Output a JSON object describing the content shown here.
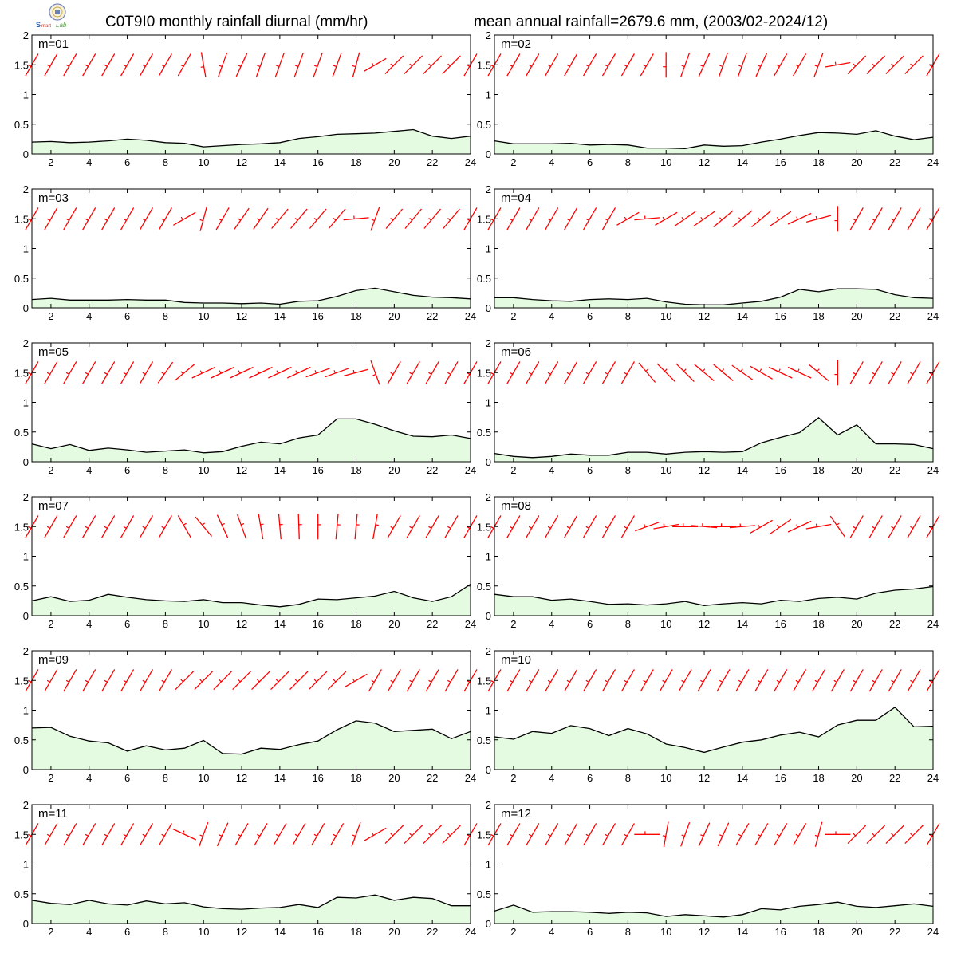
{
  "header": {
    "title_left": "C0T9I0 monthly rainfall diurnal (mm/hr)",
    "title_right": "mean annual rainfall=2679.6 mm, (2003/02-2024/12)",
    "logo_text": "Lab"
  },
  "colors": {
    "rain_fill": "#e5fbe1",
    "rain_line": "#000000",
    "wind": "#ff0000",
    "frame": "#000000"
  },
  "chart_data": [
    {
      "type": "area",
      "label": "m=01",
      "x": [
        1,
        2,
        3,
        4,
        5,
        6,
        7,
        8,
        9,
        10,
        11,
        12,
        13,
        14,
        15,
        16,
        17,
        18,
        19,
        20,
        21,
        22,
        23,
        24
      ],
      "values": [
        0.2,
        0.21,
        0.19,
        0.2,
        0.22,
        0.25,
        0.23,
        0.19,
        0.18,
        0.12,
        0.14,
        0.16,
        0.17,
        0.19,
        0.26,
        0.29,
        0.33,
        0.34,
        0.35,
        0.38,
        0.41,
        0.3,
        0.26,
        0.3
      ],
      "wind_dir": [
        210,
        210,
        210,
        210,
        210,
        210,
        210,
        210,
        210,
        170,
        200,
        205,
        200,
        200,
        200,
        200,
        200,
        195,
        240,
        225,
        225,
        225,
        225,
        210
      ],
      "ylim": [
        0,
        2
      ],
      "xticks": [
        2,
        4,
        6,
        8,
        10,
        12,
        14,
        16,
        18,
        20,
        22,
        24
      ],
      "yticks": [
        "0",
        "0.5",
        "1",
        "1.5",
        "2"
      ]
    },
    {
      "type": "area",
      "label": "m=02",
      "x": [
        1,
        2,
        3,
        4,
        5,
        6,
        7,
        8,
        9,
        10,
        11,
        12,
        13,
        14,
        15,
        16,
        17,
        18,
        19,
        20,
        21,
        22,
        23,
        24
      ],
      "values": [
        0.22,
        0.17,
        0.17,
        0.17,
        0.18,
        0.15,
        0.16,
        0.15,
        0.1,
        0.1,
        0.09,
        0.15,
        0.13,
        0.14,
        0.2,
        0.25,
        0.31,
        0.36,
        0.35,
        0.33,
        0.39,
        0.3,
        0.24,
        0.28
      ],
      "wind_dir": [
        210,
        210,
        210,
        210,
        210,
        210,
        210,
        210,
        210,
        180,
        200,
        205,
        200,
        200,
        205,
        210,
        210,
        200,
        260,
        225,
        225,
        225,
        225,
        210
      ],
      "ylim": [
        0,
        2
      ],
      "xticks": [
        2,
        4,
        6,
        8,
        10,
        12,
        14,
        16,
        18,
        20,
        22,
        24
      ],
      "yticks": [
        "0",
        "0.5",
        "1",
        "1.5",
        "2"
      ]
    },
    {
      "type": "area",
      "label": "m=03",
      "x": [
        1,
        2,
        3,
        4,
        5,
        6,
        7,
        8,
        9,
        10,
        11,
        12,
        13,
        14,
        15,
        16,
        17,
        18,
        19,
        20,
        21,
        22,
        23,
        24
      ],
      "values": [
        0.14,
        0.16,
        0.13,
        0.13,
        0.13,
        0.14,
        0.13,
        0.13,
        0.09,
        0.08,
        0.08,
        0.07,
        0.08,
        0.06,
        0.11,
        0.12,
        0.19,
        0.29,
        0.33,
        0.27,
        0.21,
        0.18,
        0.17,
        0.15
      ],
      "wind_dir": [
        210,
        210,
        210,
        210,
        210,
        210,
        210,
        210,
        240,
        195,
        210,
        215,
        215,
        220,
        220,
        220,
        220,
        265,
        200,
        220,
        220,
        220,
        220,
        210
      ],
      "ylim": [
        0,
        2
      ],
      "xticks": [
        2,
        4,
        6,
        8,
        10,
        12,
        14,
        16,
        18,
        20,
        22,
        24
      ],
      "yticks": [
        "0",
        "0.5",
        "1",
        "1.5",
        "2"
      ]
    },
    {
      "type": "area",
      "label": "m=04",
      "x": [
        1,
        2,
        3,
        4,
        5,
        6,
        7,
        8,
        9,
        10,
        11,
        12,
        13,
        14,
        15,
        16,
        17,
        18,
        19,
        20,
        21,
        22,
        23,
        24
      ],
      "values": [
        0.17,
        0.17,
        0.14,
        0.12,
        0.11,
        0.14,
        0.15,
        0.14,
        0.16,
        0.1,
        0.06,
        0.05,
        0.05,
        0.08,
        0.11,
        0.18,
        0.31,
        0.27,
        0.32,
        0.32,
        0.31,
        0.22,
        0.17,
        0.16
      ],
      "wind_dir": [
        210,
        210,
        210,
        210,
        210,
        210,
        210,
        240,
        265,
        240,
        235,
        235,
        230,
        230,
        230,
        235,
        245,
        255,
        180,
        210,
        210,
        210,
        210,
        210
      ],
      "ylim": [
        0,
        2
      ],
      "xticks": [
        2,
        4,
        6,
        8,
        10,
        12,
        14,
        16,
        18,
        20,
        22,
        24
      ],
      "yticks": [
        "0",
        "0.5",
        "1",
        "1.5",
        "2"
      ]
    },
    {
      "type": "area",
      "label": "m=05",
      "x": [
        1,
        2,
        3,
        4,
        5,
        6,
        7,
        8,
        9,
        10,
        11,
        12,
        13,
        14,
        15,
        16,
        17,
        18,
        19,
        20,
        21,
        22,
        23,
        24
      ],
      "values": [
        0.3,
        0.22,
        0.29,
        0.19,
        0.23,
        0.2,
        0.16,
        0.18,
        0.2,
        0.15,
        0.17,
        0.26,
        0.33,
        0.3,
        0.4,
        0.45,
        0.72,
        0.72,
        0.63,
        0.52,
        0.43,
        0.42,
        0.45,
        0.39
      ],
      "wind_dir": [
        210,
        210,
        210,
        210,
        210,
        210,
        210,
        215,
        230,
        245,
        245,
        245,
        245,
        245,
        245,
        250,
        250,
        255,
        160,
        210,
        210,
        210,
        210,
        210
      ],
      "ylim": [
        0,
        2
      ],
      "xticks": [
        2,
        4,
        6,
        8,
        10,
        12,
        14,
        16,
        18,
        20,
        22,
        24
      ],
      "yticks": [
        "0",
        "0.5",
        "1",
        "1.5",
        "2"
      ]
    },
    {
      "type": "area",
      "label": "m=06",
      "x": [
        1,
        2,
        3,
        4,
        5,
        6,
        7,
        8,
        9,
        10,
        11,
        12,
        13,
        14,
        15,
        16,
        17,
        18,
        19,
        20,
        21,
        22,
        23,
        24
      ],
      "values": [
        0.14,
        0.09,
        0.07,
        0.09,
        0.13,
        0.11,
        0.11,
        0.16,
        0.16,
        0.13,
        0.16,
        0.17,
        0.16,
        0.17,
        0.32,
        0.41,
        0.49,
        0.74,
        0.45,
        0.62,
        0.3,
        0.3,
        0.29,
        0.22
      ],
      "wind_dir": [
        210,
        210,
        210,
        210,
        210,
        210,
        210,
        210,
        320,
        315,
        315,
        310,
        310,
        305,
        300,
        295,
        295,
        310,
        180,
        210,
        210,
        210,
        210,
        210
      ],
      "ylim": [
        0,
        2
      ],
      "xticks": [
        2,
        4,
        6,
        8,
        10,
        12,
        14,
        16,
        18,
        20,
        22,
        24
      ],
      "yticks": [
        "0",
        "0.5",
        "1",
        "1.5",
        "2"
      ]
    },
    {
      "type": "area",
      "label": "m=07",
      "x": [
        1,
        2,
        3,
        4,
        5,
        6,
        7,
        8,
        9,
        10,
        11,
        12,
        13,
        14,
        15,
        16,
        17,
        18,
        19,
        20,
        21,
        22,
        23,
        24
      ],
      "values": [
        0.25,
        0.32,
        0.24,
        0.26,
        0.36,
        0.31,
        0.27,
        0.25,
        0.24,
        0.27,
        0.22,
        0.22,
        0.18,
        0.15,
        0.19,
        0.28,
        0.27,
        0.3,
        0.33,
        0.41,
        0.3,
        0.24,
        0.32,
        0.53
      ],
      "wind_dir": [
        210,
        210,
        210,
        210,
        210,
        210,
        210,
        210,
        330,
        320,
        335,
        340,
        350,
        355,
        358,
        0,
        5,
        5,
        10,
        210,
        210,
        210,
        210,
        210
      ],
      "ylim": [
        0,
        2
      ],
      "xticks": [
        2,
        4,
        6,
        8,
        10,
        12,
        14,
        16,
        18,
        20,
        22,
        24
      ],
      "yticks": [
        "0",
        "0.5",
        "1",
        "1.5",
        "2"
      ]
    },
    {
      "type": "area",
      "label": "m=08",
      "x": [
        1,
        2,
        3,
        4,
        5,
        6,
        7,
        8,
        9,
        10,
        11,
        12,
        13,
        14,
        15,
        16,
        17,
        18,
        19,
        20,
        21,
        22,
        23,
        24
      ],
      "values": [
        0.36,
        0.32,
        0.32,
        0.26,
        0.28,
        0.24,
        0.19,
        0.2,
        0.18,
        0.2,
        0.24,
        0.17,
        0.2,
        0.22,
        0.2,
        0.26,
        0.24,
        0.29,
        0.31,
        0.28,
        0.38,
        0.43,
        0.45,
        0.49
      ],
      "wind_dir": [
        210,
        210,
        210,
        210,
        210,
        210,
        210,
        210,
        250,
        260,
        270,
        275,
        270,
        265,
        240,
        235,
        245,
        260,
        325,
        210,
        210,
        210,
        210,
        210
      ],
      "ylim": [
        0,
        2
      ],
      "xticks": [
        2,
        4,
        6,
        8,
        10,
        12,
        14,
        16,
        18,
        20,
        22,
        24
      ],
      "yticks": [
        "0",
        "0.5",
        "1",
        "1.5",
        "2"
      ]
    },
    {
      "type": "area",
      "label": "m=09",
      "x": [
        1,
        2,
        3,
        4,
        5,
        6,
        7,
        8,
        9,
        10,
        11,
        12,
        13,
        14,
        15,
        16,
        17,
        18,
        19,
        20,
        21,
        22,
        23,
        24
      ],
      "values": [
        0.7,
        0.71,
        0.56,
        0.48,
        0.45,
        0.31,
        0.4,
        0.33,
        0.36,
        0.49,
        0.27,
        0.26,
        0.36,
        0.34,
        0.42,
        0.48,
        0.67,
        0.82,
        0.78,
        0.64,
        0.66,
        0.68,
        0.52,
        0.64
      ],
      "wind_dir": [
        210,
        210,
        210,
        210,
        210,
        210,
        210,
        210,
        225,
        225,
        225,
        225,
        225,
        225,
        225,
        225,
        225,
        240,
        210,
        210,
        210,
        210,
        210,
        210
      ],
      "ylim": [
        0,
        2
      ],
      "xticks": [
        2,
        4,
        6,
        8,
        10,
        12,
        14,
        16,
        18,
        20,
        22,
        24
      ],
      "yticks": [
        "0",
        "0.5",
        "1",
        "1.5",
        "2"
      ]
    },
    {
      "type": "area",
      "label": "m=10",
      "x": [
        1,
        2,
        3,
        4,
        5,
        6,
        7,
        8,
        9,
        10,
        11,
        12,
        13,
        14,
        15,
        16,
        17,
        18,
        19,
        20,
        21,
        22,
        23,
        24
      ],
      "values": [
        0.55,
        0.51,
        0.64,
        0.61,
        0.74,
        0.69,
        0.57,
        0.69,
        0.6,
        0.43,
        0.37,
        0.29,
        0.38,
        0.46,
        0.5,
        0.58,
        0.63,
        0.55,
        0.75,
        0.83,
        0.83,
        1.05,
        0.72,
        0.73
      ],
      "wind_dir": [
        210,
        210,
        210,
        210,
        210,
        210,
        210,
        210,
        210,
        210,
        210,
        210,
        210,
        210,
        210,
        210,
        210,
        210,
        210,
        210,
        210,
        210,
        210,
        210
      ],
      "ylim": [
        0,
        2
      ],
      "xticks": [
        2,
        4,
        6,
        8,
        10,
        12,
        14,
        16,
        18,
        20,
        22,
        24
      ],
      "yticks": [
        "0",
        "0.5",
        "1",
        "1.5",
        "2"
      ]
    },
    {
      "type": "area",
      "label": "m=11",
      "x": [
        1,
        2,
        3,
        4,
        5,
        6,
        7,
        8,
        9,
        10,
        11,
        12,
        13,
        14,
        15,
        16,
        17,
        18,
        19,
        20,
        21,
        22,
        23,
        24
      ],
      "values": [
        0.39,
        0.34,
        0.32,
        0.39,
        0.33,
        0.31,
        0.38,
        0.33,
        0.35,
        0.28,
        0.25,
        0.24,
        0.26,
        0.27,
        0.32,
        0.27,
        0.44,
        0.43,
        0.48,
        0.39,
        0.44,
        0.42,
        0.3,
        0.3
      ],
      "wind_dir": [
        210,
        210,
        210,
        210,
        210,
        210,
        210,
        210,
        295,
        200,
        205,
        210,
        210,
        210,
        210,
        210,
        210,
        200,
        240,
        225,
        225,
        225,
        225,
        210
      ],
      "ylim": [
        0,
        2
      ],
      "xticks": [
        2,
        4,
        6,
        8,
        10,
        12,
        14,
        16,
        18,
        20,
        22,
        24
      ],
      "yticks": [
        "0",
        "0.5",
        "1",
        "1.5",
        "2"
      ]
    },
    {
      "type": "area",
      "label": "m=12",
      "x": [
        1,
        2,
        3,
        4,
        5,
        6,
        7,
        8,
        9,
        10,
        11,
        12,
        13,
        14,
        15,
        16,
        17,
        18,
        19,
        20,
        21,
        22,
        23,
        24
      ],
      "values": [
        0.21,
        0.31,
        0.19,
        0.2,
        0.2,
        0.19,
        0.17,
        0.19,
        0.18,
        0.12,
        0.15,
        0.13,
        0.11,
        0.15,
        0.25,
        0.23,
        0.29,
        0.32,
        0.36,
        0.29,
        0.27,
        0.3,
        0.33,
        0.29
      ],
      "wind_dir": [
        210,
        210,
        210,
        210,
        210,
        210,
        210,
        210,
        270,
        190,
        200,
        205,
        205,
        210,
        210,
        210,
        210,
        195,
        270,
        225,
        225,
        225,
        225,
        210
      ],
      "ylim": [
        0,
        2
      ],
      "xticks": [
        2,
        4,
        6,
        8,
        10,
        12,
        14,
        16,
        18,
        20,
        22,
        24
      ],
      "yticks": [
        "0",
        "0.5",
        "1",
        "1.5",
        "2"
      ]
    }
  ]
}
